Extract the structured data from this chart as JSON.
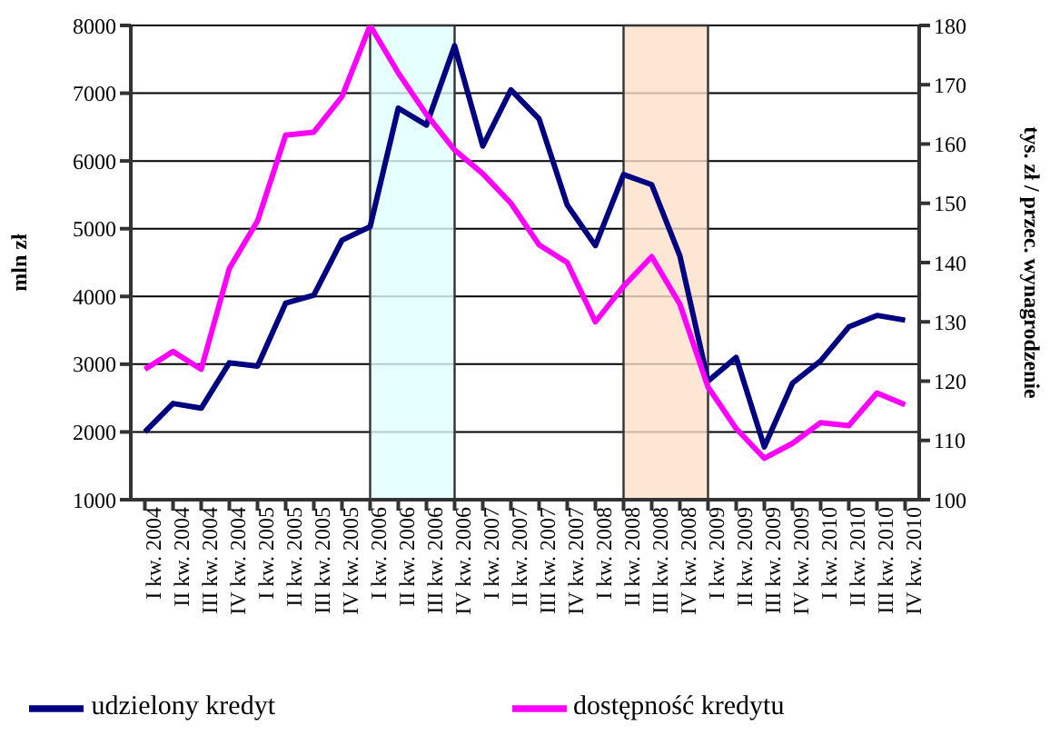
{
  "chart_data": {
    "type": "line",
    "ylabel": "mln zł",
    "y2label": "tys. zł / przec. wynagrodzenie",
    "categories": [
      "I kw. 2004",
      "II kw. 2004",
      "III kw. 2004",
      "IV kw. 2004",
      "I kw. 2005",
      "II kw. 2005",
      "III kw. 2005",
      "IV kw. 2005",
      "I kw. 2006",
      "II kw. 2006",
      "III kw. 2006",
      "IV kw. 2006",
      "I kw. 2007",
      "II kw. 2007",
      "III kw. 2007",
      "IV kw. 2007",
      "I kw. 2008",
      "II kw. 2008",
      "III kw. 2008",
      "IV kw. 2008",
      "I kw. 2009",
      "II kw. 2009",
      "III kw. 2009",
      "IV kw. 2009",
      "I kw. 2010",
      "II kw. 2010",
      "III kw. 2010",
      "IV kw. 2010"
    ],
    "series": [
      {
        "name": "udzielony kredyt",
        "color": "#000080",
        "values": [
          2000,
          2420,
          2350,
          3020,
          2970,
          3900,
          4020,
          4830,
          5030,
          6780,
          6530,
          7700,
          6220,
          7050,
          6620,
          5350,
          4750,
          5800,
          5650,
          4600,
          2750,
          3100,
          1780,
          2720,
          3050,
          3550,
          3720,
          3650
        ]
      },
      {
        "name": "dostępność kredytu",
        "color": "#ff00ff",
        "axis": "y2",
        "values": [
          122,
          125,
          122,
          139,
          147,
          161.5,
          162,
          168,
          180,
          172,
          165,
          159,
          155,
          150,
          143,
          140,
          130,
          136,
          141,
          133,
          119,
          112,
          107,
          109.5,
          113,
          112.5,
          118,
          116
        ]
      }
    ],
    "ylim": [
      1000,
      8000
    ],
    "yticks": [
      1000,
      2000,
      3000,
      4000,
      5000,
      6000,
      7000,
      8000
    ],
    "y2lim": [
      100,
      180
    ],
    "y2ticks": [
      100,
      110,
      120,
      130,
      140,
      150,
      160,
      170,
      180
    ],
    "bands": [
      {
        "axis": "x",
        "from": "I kw. 2006",
        "to": "IV kw. 2006",
        "color": "#e0ffff"
      },
      {
        "axis": "x",
        "from": "II kw. 2008",
        "to": "I kw. 2009",
        "color": "#fde0c8"
      }
    ],
    "grid": "y",
    "legend": "bottom",
    "marker": "none",
    "line_style": "solid"
  }
}
